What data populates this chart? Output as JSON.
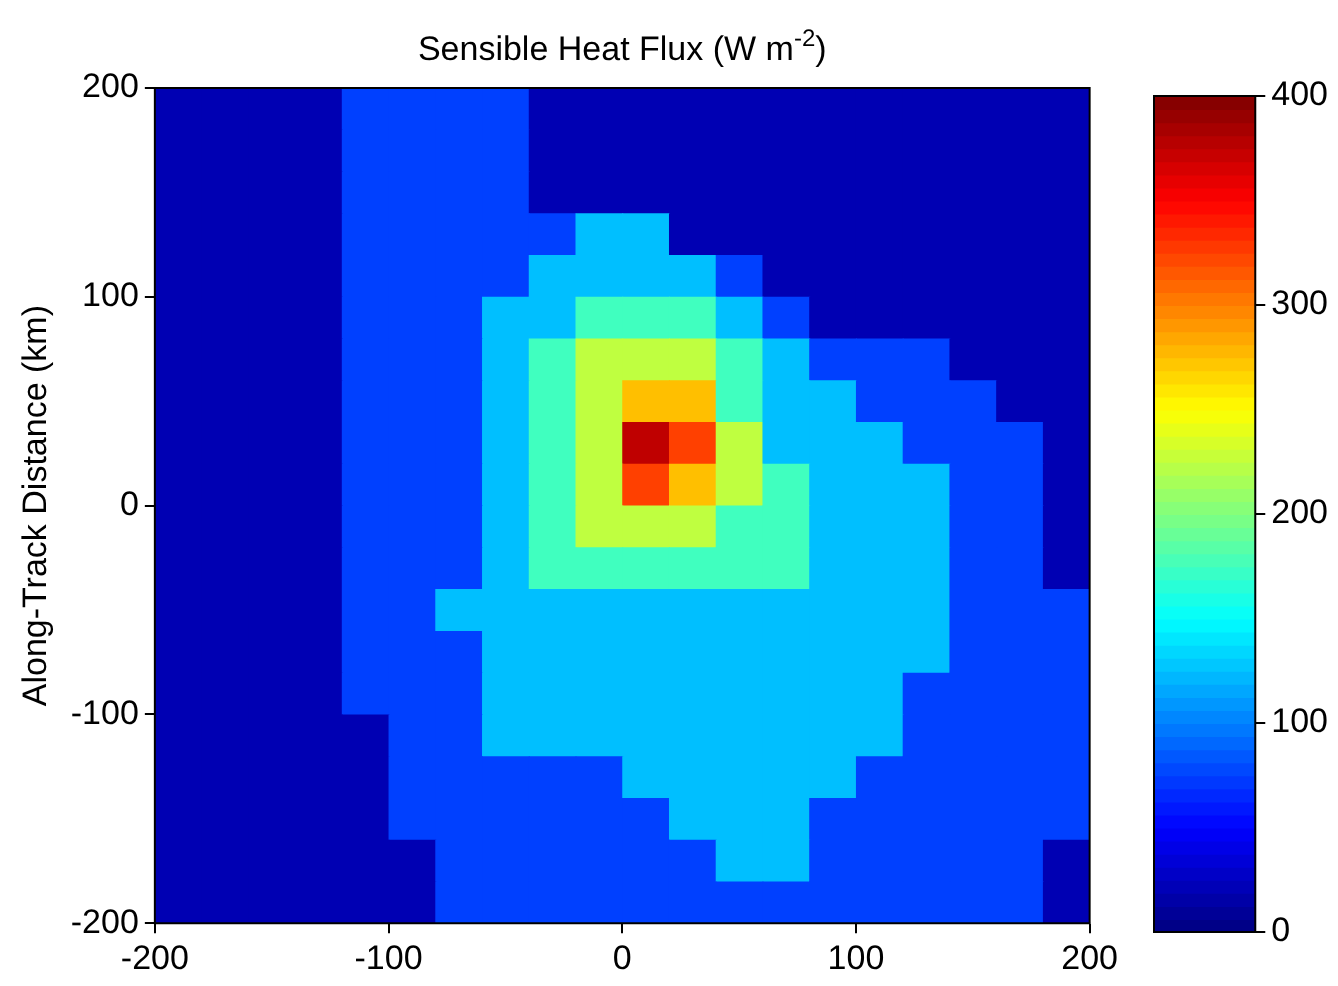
{
  "chart_data": {
    "type": "heatmap",
    "title": "Sensible Heat Flux (W m$^{-2}$)",
    "ylabel": "Along-Track Distance (km)",
    "x": [
      -190,
      -170,
      -150,
      -130,
      -110,
      -90,
      -70,
      -50,
      -30,
      -10,
      10,
      30,
      50,
      70,
      90,
      110,
      130,
      150,
      170,
      190
    ],
    "y": [
      190,
      170,
      150,
      130,
      110,
      90,
      70,
      50,
      30,
      10,
      -10,
      -30,
      -50,
      -70,
      -90,
      -110,
      -130,
      -150,
      -170,
      -190
    ],
    "cells": [
      [
        20,
        20,
        20,
        20,
        75,
        75,
        75,
        75,
        20,
        20,
        20,
        20,
        20,
        20,
        20,
        20,
        20,
        20,
        20,
        20
      ],
      [
        20,
        20,
        20,
        20,
        75,
        75,
        75,
        75,
        20,
        20,
        20,
        20,
        20,
        20,
        20,
        20,
        20,
        20,
        20,
        20
      ],
      [
        20,
        20,
        20,
        20,
        75,
        75,
        75,
        75,
        20,
        20,
        20,
        20,
        20,
        20,
        20,
        20,
        20,
        20,
        20,
        20
      ],
      [
        20,
        20,
        20,
        20,
        75,
        75,
        75,
        75,
        75,
        125,
        125,
        20,
        20,
        20,
        20,
        20,
        20,
        20,
        20,
        20
      ],
      [
        20,
        20,
        20,
        20,
        75,
        75,
        75,
        75,
        125,
        125,
        125,
        125,
        75,
        20,
        20,
        20,
        20,
        20,
        20,
        20
      ],
      [
        20,
        20,
        20,
        20,
        75,
        75,
        75,
        125,
        125,
        175,
        175,
        175,
        125,
        75,
        20,
        20,
        20,
        20,
        20,
        20
      ],
      [
        20,
        20,
        20,
        20,
        75,
        75,
        75,
        125,
        175,
        225,
        225,
        225,
        175,
        125,
        75,
        75,
        75,
        20,
        20,
        20
      ],
      [
        20,
        20,
        20,
        20,
        75,
        75,
        75,
        125,
        175,
        225,
        275,
        275,
        175,
        125,
        125,
        75,
        75,
        75,
        20,
        20
      ],
      [
        20,
        20,
        20,
        20,
        75,
        75,
        75,
        125,
        175,
        225,
        375,
        325,
        225,
        125,
        125,
        125,
        75,
        75,
        75,
        20
      ],
      [
        20,
        20,
        20,
        20,
        75,
        75,
        75,
        125,
        175,
        225,
        325,
        275,
        225,
        175,
        125,
        125,
        125,
        75,
        75,
        20
      ],
      [
        20,
        20,
        20,
        20,
        75,
        75,
        75,
        125,
        175,
        225,
        225,
        225,
        175,
        175,
        125,
        125,
        125,
        75,
        75,
        20
      ],
      [
        20,
        20,
        20,
        20,
        75,
        75,
        75,
        125,
        175,
        175,
        175,
        175,
        175,
        175,
        125,
        125,
        125,
        75,
        75,
        20
      ],
      [
        20,
        20,
        20,
        20,
        75,
        75,
        125,
        125,
        125,
        125,
        125,
        125,
        125,
        125,
        125,
        125,
        125,
        75,
        75,
        75
      ],
      [
        20,
        20,
        20,
        20,
        75,
        75,
        75,
        125,
        125,
        125,
        125,
        125,
        125,
        125,
        125,
        125,
        125,
        75,
        75,
        75
      ],
      [
        20,
        20,
        20,
        20,
        75,
        75,
        75,
        125,
        125,
        125,
        125,
        125,
        125,
        125,
        125,
        125,
        75,
        75,
        75,
        75
      ],
      [
        20,
        20,
        20,
        20,
        20,
        75,
        75,
        125,
        125,
        125,
        125,
        125,
        125,
        125,
        125,
        125,
        75,
        75,
        75,
        75
      ],
      [
        20,
        20,
        20,
        20,
        20,
        75,
        75,
        75,
        75,
        75,
        125,
        125,
        125,
        125,
        125,
        75,
        75,
        75,
        75,
        75
      ],
      [
        20,
        20,
        20,
        20,
        20,
        75,
        75,
        75,
        75,
        75,
        75,
        125,
        125,
        125,
        75,
        75,
        75,
        75,
        75,
        75
      ],
      [
        20,
        20,
        20,
        20,
        20,
        20,
        75,
        75,
        75,
        75,
        75,
        75,
        125,
        125,
        75,
        75,
        75,
        75,
        75,
        20
      ],
      [
        20,
        20,
        20,
        20,
        20,
        20,
        75,
        75,
        75,
        75,
        75,
        75,
        75,
        75,
        75,
        75,
        75,
        75,
        75,
        20
      ]
    ],
    "xlim": [
      -200,
      200
    ],
    "xticks": [
      -200,
      -100,
      0,
      100,
      200
    ],
    "ylim": [
      -200,
      200
    ],
    "yticks": [
      -200,
      -100,
      0,
      100,
      200
    ],
    "clim": [
      0,
      400
    ],
    "cticks": [
      0,
      100,
      200,
      300,
      400
    ]
  }
}
